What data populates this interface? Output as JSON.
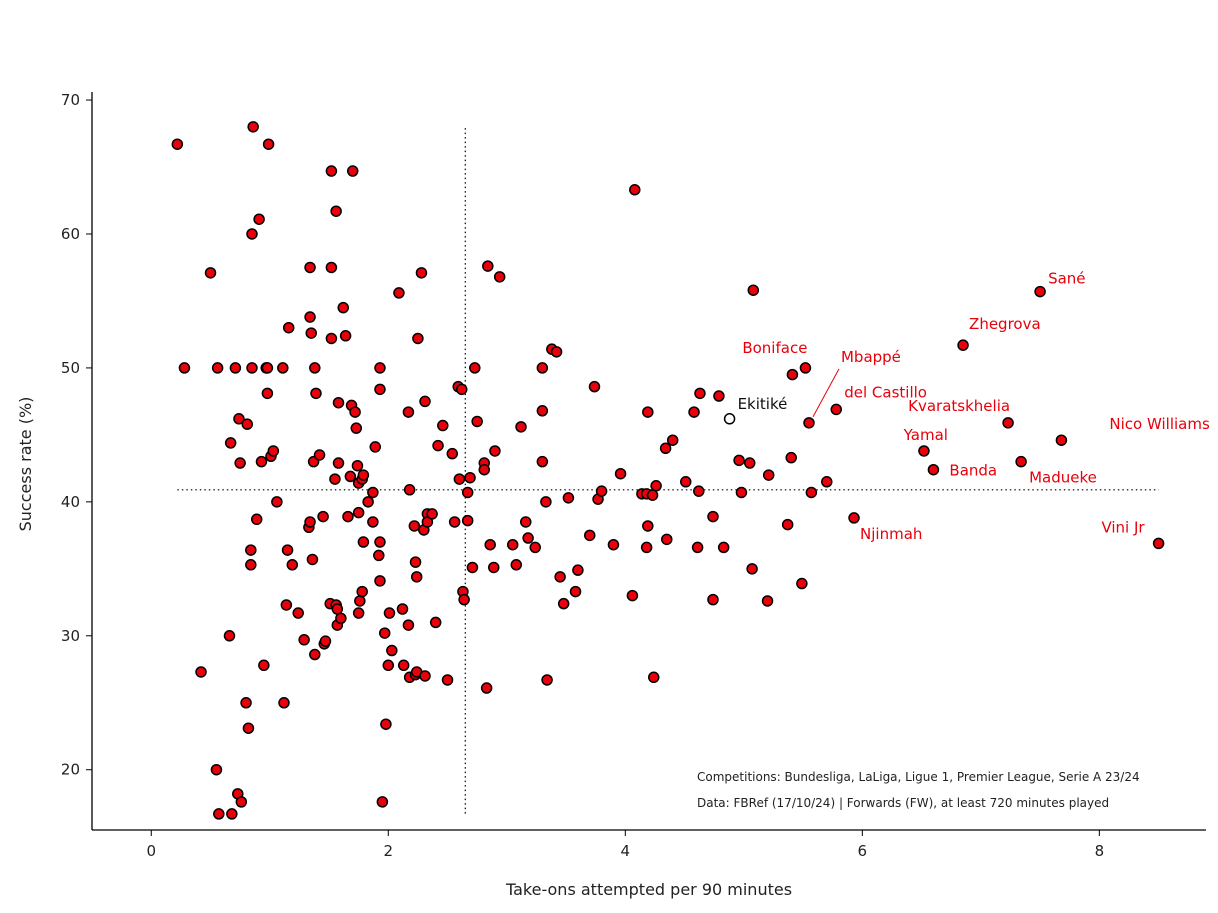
{
  "chart_data": {
    "type": "scatter",
    "title": "",
    "xlabel": "Take-ons attempted per 90 minutes",
    "ylabel": "Success rate (%)",
    "xlim": [
      -0.5,
      8.9
    ],
    "ylim": [
      15.5,
      70.6
    ],
    "xticks": [
      0,
      2,
      4,
      6,
      8
    ],
    "yticks": [
      20,
      30,
      40,
      50,
      60,
      70
    ],
    "grid": false,
    "reference_lines": {
      "x_mean": 2.65,
      "y_mean": 40.9
    },
    "colors": {
      "point_fill": "#e8000b",
      "point_edge": "#000000",
      "highlight_fill": "#ffffff",
      "label_red": "#e8000b",
      "label_black": "#111111"
    },
    "annotations": [
      "Competitions: Bundesliga, LaLiga, Ligue 1, Premier League, Serie A 23/24",
      "Data: FBRef (17/10/24) | Forwards (FW), at least 720 minutes played"
    ],
    "highlight": {
      "name": "Ekitiké",
      "x": 4.88,
      "y": 46.2
    },
    "labeled_points": [
      {
        "name": "Sané",
        "x": 7.5,
        "y": 55.7
      },
      {
        "name": "Zhegrova",
        "x": 6.85,
        "y": 51.7
      },
      {
        "name": "Boniface",
        "x": 5.52,
        "y": 50.0
      },
      {
        "name": "Mbappé",
        "x": 5.55,
        "y": 45.9
      },
      {
        "name": "del Castillo",
        "x": 5.78,
        "y": 46.9
      },
      {
        "name": "Kvaratskhelia",
        "x": 7.23,
        "y": 45.9
      },
      {
        "name": "Nico Williams",
        "x": 7.68,
        "y": 44.6
      },
      {
        "name": "Yamal",
        "x": 6.52,
        "y": 43.8
      },
      {
        "name": "Banda",
        "x": 6.6,
        "y": 42.4
      },
      {
        "name": "Madueke",
        "x": 7.34,
        "y": 43.0
      },
      {
        "name": "Njinmah",
        "x": 5.93,
        "y": 38.8
      },
      {
        "name": "Vini Jr",
        "x": 8.5,
        "y": 36.9
      }
    ],
    "points": [
      [
        0.22,
        66.7
      ],
      [
        0.28,
        50.0
      ],
      [
        0.42,
        27.3
      ],
      [
        0.5,
        57.1
      ],
      [
        0.55,
        20.0
      ],
      [
        0.56,
        50.0
      ],
      [
        0.57,
        16.7
      ],
      [
        0.66,
        30.0
      ],
      [
        0.67,
        44.4
      ],
      [
        0.68,
        16.7
      ],
      [
        0.71,
        50.0
      ],
      [
        0.73,
        18.2
      ],
      [
        0.74,
        46.2
      ],
      [
        0.75,
        42.9
      ],
      [
        0.76,
        17.6
      ],
      [
        0.8,
        25.0
      ],
      [
        0.81,
        45.8
      ],
      [
        0.82,
        23.1
      ],
      [
        0.84,
        36.4
      ],
      [
        0.84,
        35.3
      ],
      [
        0.85,
        60.0
      ],
      [
        0.85,
        50.0
      ],
      [
        0.86,
        68.0
      ],
      [
        0.89,
        38.7
      ],
      [
        0.91,
        61.1
      ],
      [
        0.93,
        43.0
      ],
      [
        0.95,
        27.8
      ],
      [
        0.97,
        50.0
      ],
      [
        0.98,
        50.0
      ],
      [
        0.98,
        48.1
      ],
      [
        0.99,
        66.7
      ],
      [
        1.01,
        43.4
      ],
      [
        1.03,
        43.8
      ],
      [
        1.06,
        40.0
      ],
      [
        1.11,
        50.0
      ],
      [
        1.12,
        25.0
      ],
      [
        1.14,
        32.3
      ],
      [
        1.15,
        36.4
      ],
      [
        1.16,
        53.0
      ],
      [
        1.19,
        35.3
      ],
      [
        1.24,
        31.7
      ],
      [
        1.29,
        29.7
      ],
      [
        1.33,
        38.1
      ],
      [
        1.34,
        38.5
      ],
      [
        1.34,
        57.5
      ],
      [
        1.34,
        53.8
      ],
      [
        1.35,
        52.6
      ],
      [
        1.36,
        35.7
      ],
      [
        1.37,
        43.0
      ],
      [
        1.38,
        28.6
      ],
      [
        1.38,
        50.0
      ],
      [
        1.39,
        48.1
      ],
      [
        1.42,
        43.5
      ],
      [
        1.45,
        38.9
      ],
      [
        1.46,
        29.4
      ],
      [
        1.47,
        29.6
      ],
      [
        1.51,
        32.4
      ],
      [
        1.52,
        64.7
      ],
      [
        1.52,
        57.5
      ],
      [
        1.52,
        52.2
      ],
      [
        1.55,
        41.7
      ],
      [
        1.56,
        61.7
      ],
      [
        1.56,
        32.3
      ],
      [
        1.57,
        32.0
      ],
      [
        1.57,
        30.8
      ],
      [
        1.58,
        47.4
      ],
      [
        1.58,
        42.9
      ],
      [
        1.6,
        31.3
      ],
      [
        1.62,
        54.5
      ],
      [
        1.64,
        52.4
      ],
      [
        1.66,
        38.9
      ],
      [
        1.68,
        41.9
      ],
      [
        1.69,
        47.2
      ],
      [
        1.7,
        64.7
      ],
      [
        1.72,
        46.7
      ],
      [
        1.73,
        45.5
      ],
      [
        1.74,
        42.7
      ],
      [
        1.75,
        41.4
      ],
      [
        1.75,
        39.2
      ],
      [
        1.75,
        31.7
      ],
      [
        1.76,
        32.6
      ],
      [
        1.78,
        33.3
      ],
      [
        1.78,
        41.7
      ],
      [
        1.79,
        42.0
      ],
      [
        1.79,
        37.0
      ],
      [
        1.83,
        40.0
      ],
      [
        1.87,
        40.7
      ],
      [
        1.87,
        38.5
      ],
      [
        1.89,
        44.1
      ],
      [
        1.92,
        36.0
      ],
      [
        1.93,
        50.0
      ],
      [
        1.93,
        48.4
      ],
      [
        1.93,
        34.1
      ],
      [
        1.93,
        37.0
      ],
      [
        1.95,
        17.6
      ],
      [
        1.97,
        30.2
      ],
      [
        1.98,
        23.4
      ],
      [
        2.0,
        27.8
      ],
      [
        2.01,
        31.7
      ],
      [
        2.03,
        28.9
      ],
      [
        2.09,
        55.6
      ],
      [
        2.12,
        32.0
      ],
      [
        2.13,
        27.8
      ],
      [
        2.17,
        46.7
      ],
      [
        2.17,
        30.8
      ],
      [
        2.18,
        26.9
      ],
      [
        2.18,
        40.9
      ],
      [
        2.22,
        38.2
      ],
      [
        2.23,
        35.5
      ],
      [
        2.23,
        27.1
      ],
      [
        2.24,
        34.4
      ],
      [
        2.24,
        27.3
      ],
      [
        2.25,
        52.2
      ],
      [
        2.28,
        57.1
      ],
      [
        2.3,
        37.9
      ],
      [
        2.31,
        27.0
      ],
      [
        2.31,
        47.5
      ],
      [
        2.33,
        39.1
      ],
      [
        2.33,
        38.5
      ],
      [
        2.37,
        39.1
      ],
      [
        2.4,
        31.0
      ],
      [
        2.42,
        44.2
      ],
      [
        2.46,
        45.7
      ],
      [
        2.5,
        26.7
      ],
      [
        2.54,
        43.6
      ],
      [
        2.56,
        38.5
      ],
      [
        2.59,
        48.6
      ],
      [
        2.6,
        41.7
      ],
      [
        2.62,
        48.4
      ],
      [
        2.63,
        33.3
      ],
      [
        2.64,
        32.7
      ],
      [
        2.67,
        38.6
      ],
      [
        2.67,
        40.7
      ],
      [
        2.69,
        41.8
      ],
      [
        2.71,
        35.1
      ],
      [
        2.73,
        50.0
      ],
      [
        2.75,
        46.0
      ],
      [
        2.81,
        42.9
      ],
      [
        2.81,
        42.4
      ],
      [
        2.83,
        26.1
      ],
      [
        2.84,
        57.6
      ],
      [
        2.86,
        36.8
      ],
      [
        2.89,
        35.1
      ],
      [
        2.9,
        43.8
      ],
      [
        2.94,
        56.8
      ],
      [
        3.05,
        36.8
      ],
      [
        3.08,
        35.3
      ],
      [
        3.12,
        45.6
      ],
      [
        3.16,
        38.5
      ],
      [
        3.18,
        37.3
      ],
      [
        3.24,
        36.6
      ],
      [
        3.3,
        43.0
      ],
      [
        3.3,
        50.0
      ],
      [
        3.3,
        46.8
      ],
      [
        3.33,
        40.0
      ],
      [
        3.34,
        26.7
      ],
      [
        3.38,
        51.4
      ],
      [
        3.42,
        51.2
      ],
      [
        3.45,
        34.4
      ],
      [
        3.48,
        32.4
      ],
      [
        3.52,
        40.3
      ],
      [
        3.58,
        33.3
      ],
      [
        3.6,
        34.9
      ],
      [
        3.7,
        37.5
      ],
      [
        3.74,
        48.6
      ],
      [
        3.77,
        40.2
      ],
      [
        3.8,
        40.8
      ],
      [
        3.9,
        36.8
      ],
      [
        3.96,
        42.1
      ],
      [
        4.06,
        33.0
      ],
      [
        4.08,
        63.3
      ],
      [
        4.14,
        40.6
      ],
      [
        4.18,
        40.6
      ],
      [
        4.18,
        36.6
      ],
      [
        4.19,
        38.2
      ],
      [
        4.19,
        46.7
      ],
      [
        4.23,
        40.5
      ],
      [
        4.24,
        26.9
      ],
      [
        4.26,
        41.2
      ],
      [
        4.34,
        44.0
      ],
      [
        4.35,
        37.2
      ],
      [
        4.4,
        44.6
      ],
      [
        4.51,
        41.5
      ],
      [
        4.58,
        46.7
      ],
      [
        4.61,
        36.6
      ],
      [
        4.62,
        40.8
      ],
      [
        4.63,
        48.1
      ],
      [
        4.74,
        32.7
      ],
      [
        4.74,
        38.9
      ],
      [
        4.79,
        47.9
      ],
      [
        4.83,
        36.6
      ],
      [
        4.96,
        43.1
      ],
      [
        4.98,
        40.7
      ],
      [
        5.05,
        42.9
      ],
      [
        5.07,
        35.0
      ],
      [
        5.08,
        55.8
      ],
      [
        5.2,
        32.6
      ],
      [
        5.21,
        42.0
      ],
      [
        5.37,
        38.3
      ],
      [
        5.4,
        43.3
      ],
      [
        5.41,
        49.5
      ],
      [
        5.49,
        33.9
      ],
      [
        5.57,
        40.7
      ],
      [
        5.7,
        41.5
      ]
    ]
  }
}
